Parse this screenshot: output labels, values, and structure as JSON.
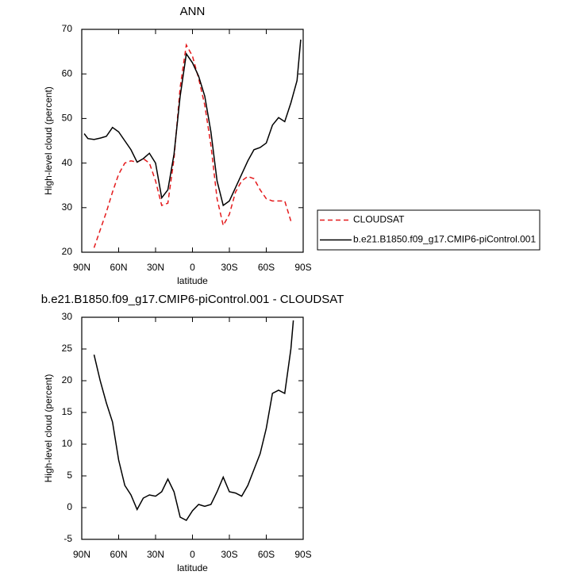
{
  "chart_data": [
    {
      "type": "line",
      "title": "ANN",
      "xlabel": "latitude",
      "ylabel": "High-level cloud (percent)",
      "x": [
        88,
        85,
        80,
        75,
        70,
        65,
        60,
        55,
        50,
        45,
        40,
        35,
        30,
        25,
        20,
        15,
        10,
        5,
        0,
        -5,
        -10,
        -15,
        -20,
        -25,
        -30,
        -35,
        -40,
        -45,
        -50,
        -55,
        -60,
        -65,
        -70,
        -75,
        -80,
        -85,
        -88
      ],
      "series": [
        {
          "name": "CLOUDSAT",
          "color": "#e41a1c",
          "line_style": "dashed",
          "values": [
            null,
            null,
            21,
            25,
            29,
            33.5,
            37.5,
            40,
            40.5,
            40.2,
            41,
            40,
            36,
            30.5,
            31,
            41,
            57,
            66.5,
            64,
            59,
            53,
            44,
            32,
            26,
            28.5,
            33.5,
            36,
            37,
            36.5,
            34,
            32,
            31.5,
            31.5,
            31.5,
            27,
            null,
            null
          ]
        },
        {
          "name": "b.e21.B1850.f09_g17.CMIP6-piControl.001",
          "color": "#000000",
          "line_style": "solid",
          "values": [
            46.6,
            45.5,
            45.3,
            45.6,
            46.0,
            48.0,
            47.0,
            45.0,
            43.0,
            40.2,
            41.0,
            42.2,
            40.0,
            32.2,
            34.0,
            42,
            55,
            64.5,
            62.5,
            59.5,
            55,
            47,
            36,
            30.5,
            31.5,
            34.5,
            37.5,
            40.5,
            43.0,
            43.5,
            44.5,
            48.5,
            50.2,
            49.3,
            53.5,
            58.5,
            67.7
          ]
        }
      ],
      "xlim": [
        90,
        -90
      ],
      "xticks": [
        {
          "value": 90,
          "label": "90N"
        },
        {
          "value": 60,
          "label": "60N"
        },
        {
          "value": 30,
          "label": "30N"
        },
        0,
        {
          "value": -30,
          "label": "30S"
        },
        {
          "value": -60,
          "label": "60S"
        },
        {
          "value": -90,
          "label": "90S"
        }
      ],
      "ylim": [
        20,
        70
      ],
      "yticks": [
        20,
        30,
        40,
        50,
        60,
        70
      ],
      "legend": "right"
    },
    {
      "type": "line",
      "title": "b.e21.B1850.f09_g17.CMIP6-piControl.001 - CLOUDSAT",
      "xlabel": "latitude",
      "ylabel": "High-level cloud (percent)",
      "x": [
        80,
        75,
        70,
        65,
        60,
        55,
        50,
        45,
        40,
        35,
        30,
        25,
        20,
        15,
        10,
        5,
        0,
        -5,
        -10,
        -15,
        -20,
        -25,
        -30,
        -35,
        -40,
        -45,
        -50,
        -55,
        -60,
        -65,
        -70,
        -75,
        -80,
        -82
      ],
      "series": [
        {
          "color": "#000000",
          "line_style": "solid",
          "values": [
            24.1,
            20,
            16.5,
            13.5,
            7.5,
            3.5,
            2.0,
            -0.3,
            1.5,
            2.0,
            1.8,
            2.5,
            4.5,
            2.5,
            -1.5,
            -2.0,
            -0.5,
            0.5,
            0.2,
            0.5,
            2.5,
            4.8,
            2.5,
            2.3,
            1.8,
            3.5,
            6.0,
            8.5,
            12.5,
            18.0,
            18.5,
            18.0,
            25,
            29.5
          ]
        }
      ],
      "xlim": [
        90,
        -90
      ],
      "xticks": [
        {
          "value": 90,
          "label": "90N"
        },
        {
          "value": 60,
          "label": "60N"
        },
        {
          "value": 30,
          "label": "30N"
        },
        0,
        {
          "value": -30,
          "label": "30S"
        },
        {
          "value": -60,
          "label": "60S"
        },
        {
          "value": -90,
          "label": "90S"
        }
      ],
      "ylim": [
        -5,
        30
      ],
      "yticks": [
        -5,
        0,
        5,
        10,
        15,
        20,
        25,
        30
      ]
    }
  ]
}
